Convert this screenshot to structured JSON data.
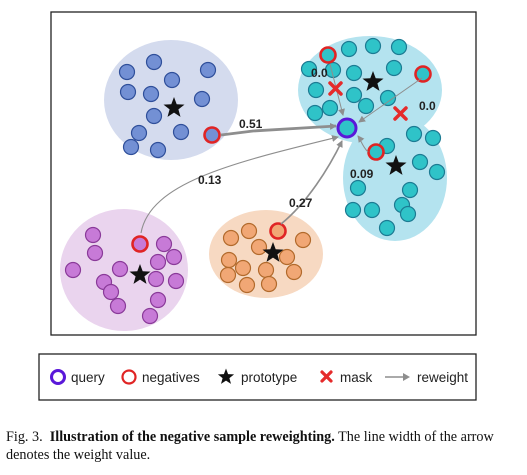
{
  "diagram": {
    "weights": {
      "top_left": "0.51",
      "bottom_left": "0.13",
      "bottom_middle": "0.27",
      "right_lower": "0.09",
      "mask_left": "0.0",
      "mask_right": "0.0"
    }
  },
  "legend": {
    "query": "query",
    "negatives": "negatives",
    "prototype": "prototype",
    "mask": "mask",
    "reweight": "reweight"
  },
  "caption": {
    "label": "Fig. 3.",
    "title": "Illustration of the negative sample reweighting.",
    "text": "The line width of the arrow denotes the weight value."
  },
  "colors": {
    "cluster_blue_fill": "#d4dbee",
    "node_blue": "#7390d4",
    "cluster_teal_fill": "#b4e3ef",
    "node_teal": "#2fc3c8",
    "cluster_purple_fill": "#ead4ee",
    "node_purple": "#c77ad7",
    "cluster_orange_fill": "#f7d9c2",
    "node_orange": "#f1a775",
    "query_ring": "#5a18d9",
    "negative_ring": "#e02424",
    "mask": "#e52b2b",
    "arrow": "#8e8e8e"
  }
}
